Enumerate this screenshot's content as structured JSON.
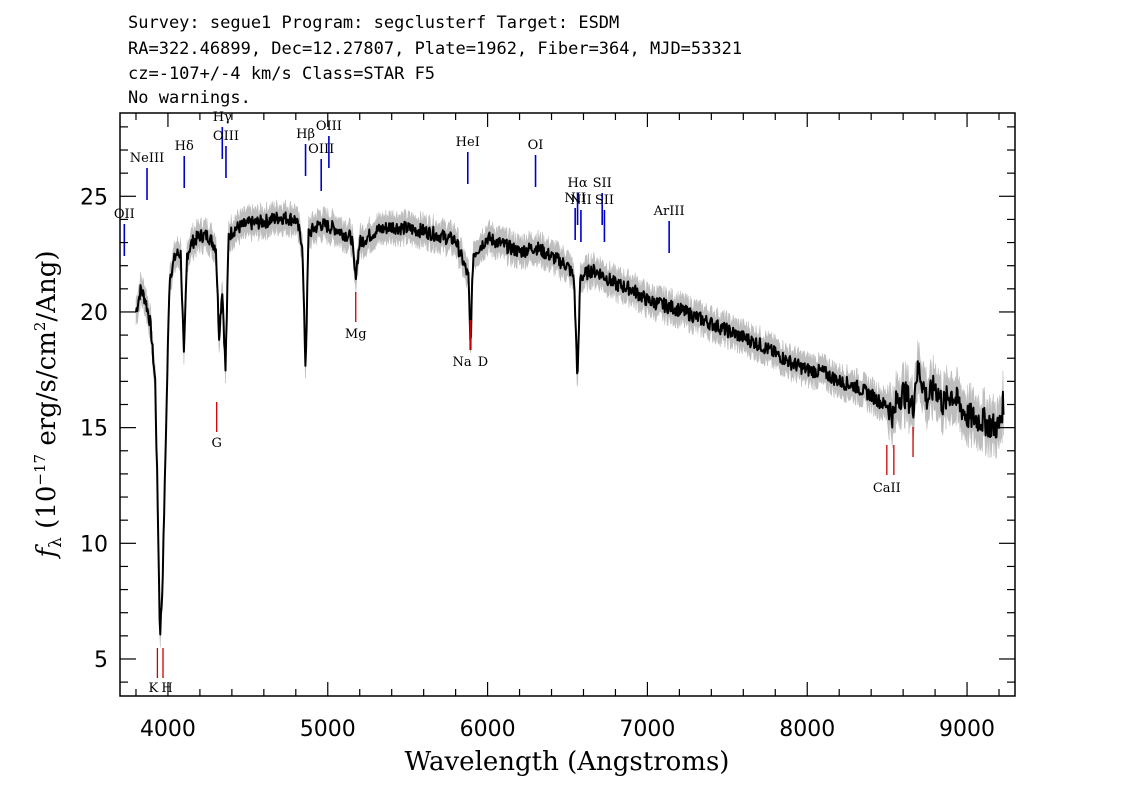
{
  "header": {
    "line1": "Survey: segue1 Program: segclusterf Target: ESDM",
    "line2": "RA=322.46899, Dec=12.27807, Plate=1962, Fiber=364, MJD=53321",
    "line3": "cz=-107+/-4 km/s Class=STAR F5",
    "line4": "No warnings."
  },
  "colors": {
    "flux": "#000000",
    "error_band": "#bdbdbd",
    "emission": "#0000cc",
    "absorption": "#cc0000"
  },
  "chart_data": {
    "type": "line",
    "xlabel": "Wavelength (Angstroms)",
    "ylabel": "f_λ (10^-17 erg/s/cm^2/Ang)",
    "ylabel_parts": {
      "f": "f",
      "sub": "λ",
      "pre": " (10",
      "exp1": "−17",
      "mid": " erg/s/cm",
      "exp2": "2",
      "post": "/Ang)"
    },
    "xlim": [
      3700,
      9300
    ],
    "ylim": [
      3.4,
      28.6
    ],
    "xticks": [
      4000,
      5000,
      6000,
      7000,
      8000,
      9000
    ],
    "yticks": [
      5,
      10,
      15,
      20,
      25
    ],
    "series": [
      {
        "x": [
          3800,
          3830,
          3860,
          3890,
          3920,
          3935,
          3950,
          3965,
          3985,
          4010,
          4050,
          4080,
          4100,
          4120,
          4150,
          4200,
          4250,
          4300,
          4320,
          4340,
          4360,
          4380,
          4420,
          4500,
          4600,
          4700,
          4800,
          4840,
          4861,
          4880,
          4950,
          5050,
          5150,
          5172,
          5200,
          5300,
          5400,
          5500,
          5600,
          5700,
          5800,
          5880,
          5893,
          5910,
          6000,
          6100,
          6200,
          6300,
          6400,
          6500,
          6540,
          6563,
          6580,
          6650,
          6700,
          6800,
          6900,
          7000,
          7100,
          7200,
          7300,
          7400,
          7500,
          7600,
          7700,
          7800,
          7900,
          8000,
          8100,
          8200,
          8300,
          8400,
          8480,
          8500,
          8520,
          8542,
          8560,
          8600,
          8640,
          8662,
          8680,
          8700,
          8750,
          8800,
          8850,
          8900,
          8950,
          9000,
          9050,
          9100,
          9150,
          9200,
          9230
        ],
        "y": [
          20.0,
          21.0,
          20.5,
          19.5,
          17.0,
          12.0,
          6.0,
          8.0,
          14.0,
          21.5,
          22.5,
          22.5,
          18.0,
          22.5,
          23.0,
          23.3,
          23.3,
          22.8,
          19.0,
          21.0,
          17.5,
          23.3,
          23.6,
          23.8,
          23.9,
          24.1,
          24.0,
          23.0,
          17.5,
          23.4,
          23.8,
          23.6,
          23.2,
          21.5,
          23.0,
          23.5,
          23.7,
          23.6,
          23.5,
          23.3,
          23.1,
          21.5,
          18.5,
          22.5,
          23.2,
          22.9,
          22.6,
          22.8,
          22.4,
          22.0,
          21.5,
          17.0,
          21.5,
          21.8,
          21.7,
          21.2,
          21.0,
          20.5,
          20.3,
          20.1,
          19.8,
          19.5,
          19.2,
          18.9,
          18.6,
          18.2,
          17.8,
          17.5,
          17.4,
          17.0,
          16.8,
          16.4,
          16.0,
          16.0,
          15.8,
          15.4,
          16.2,
          16.5,
          16.2,
          15.8,
          17.2,
          17.5,
          16.2,
          16.8,
          16.0,
          16.5,
          16.0,
          15.5,
          15.4,
          15.3,
          15.1,
          15.0,
          16.2
        ]
      }
    ],
    "emission_lines": [
      {
        "label": "OII",
        "x": 3727
      },
      {
        "label": "NeIII",
        "x": 3869
      },
      {
        "label": "Hδ",
        "x": 4102
      },
      {
        "label": "Hγ",
        "x": 4340
      },
      {
        "label": "OIII",
        "x": 4363
      },
      {
        "label": "Hβ",
        "x": 4861
      },
      {
        "label": "OIII",
        "x": 4959
      },
      {
        "label": "OIII",
        "x": 5007
      },
      {
        "label": "HeI",
        "x": 5876
      },
      {
        "label": "OI",
        "x": 6300
      },
      {
        "label": "NII",
        "x": 6548
      },
      {
        "label": "Hα",
        "x": 6563
      },
      {
        "label": "NII",
        "x": 6584
      },
      {
        "label": "SII",
        "x": 6717
      },
      {
        "label": "SII",
        "x": 6731
      },
      {
        "label": "ArIII",
        "x": 7136
      }
    ],
    "absorption_lines": [
      {
        "label": "K",
        "x": 3934
      },
      {
        "label": "H",
        "x": 3969
      },
      {
        "label": "G",
        "x": 4305
      },
      {
        "label": "Mg",
        "x": 5175
      },
      {
        "label": "Na",
        "x": 5890
      },
      {
        "label": "D",
        "x": 5896
      },
      {
        "label": "CaII",
        "x": 8498
      },
      {
        "label": "CaII",
        "x": 8542
      },
      {
        "label": "CaII",
        "x": 8662
      }
    ],
    "grid": false,
    "legend": "none"
  }
}
